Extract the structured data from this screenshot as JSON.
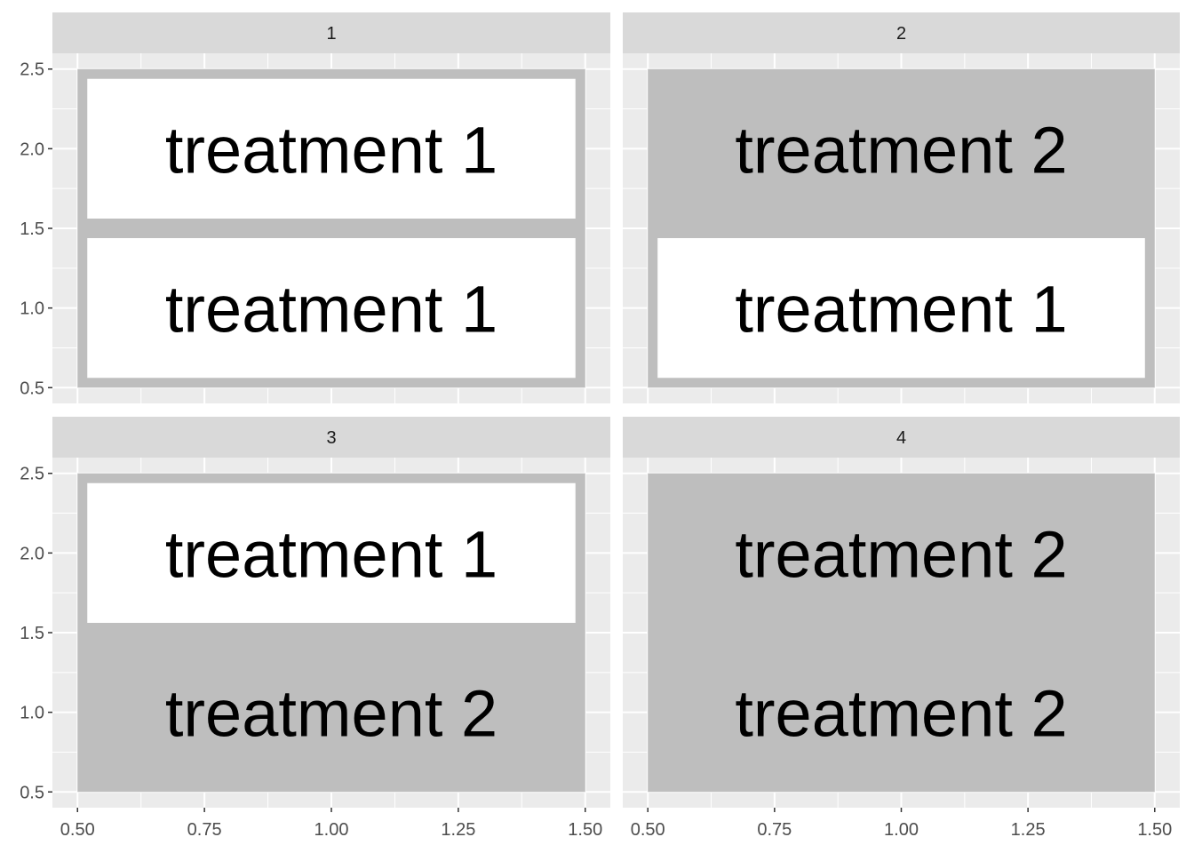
{
  "chart_data": {
    "type": "heatmap",
    "facet_layout": "2x2",
    "grid": true,
    "legend": "none",
    "xlim": [
      0.5,
      1.5
    ],
    "ylim": [
      0.5,
      2.5
    ],
    "x_ticks": [
      0.5,
      0.75,
      1.0,
      1.25,
      1.5
    ],
    "x_tick_labels": [
      "0.50",
      "0.75",
      "1.00",
      "1.25",
      "1.50"
    ],
    "y_ticks": [
      0.5,
      1.0,
      1.5,
      2.0,
      2.5
    ],
    "y_tick_labels": [
      "0.5",
      "1.0",
      "1.5",
      "2.0",
      "2.5"
    ],
    "colors": {
      "panel_bg": "#ebebeb",
      "grid_major": "#ffffff",
      "strip_bg": "#d9d9d9",
      "treatment 1": "#ffffff",
      "treatment 2": "#bebebe",
      "tile_border": "#bebebe"
    },
    "facets": [
      {
        "strip": "1",
        "tiles": [
          {
            "x": 1,
            "y": 1,
            "label": "treatment 1"
          },
          {
            "x": 1,
            "y": 2,
            "label": "treatment 1"
          }
        ]
      },
      {
        "strip": "2",
        "tiles": [
          {
            "x": 1,
            "y": 1,
            "label": "treatment 1"
          },
          {
            "x": 1,
            "y": 2,
            "label": "treatment 2"
          }
        ]
      },
      {
        "strip": "3",
        "tiles": [
          {
            "x": 1,
            "y": 1,
            "label": "treatment 2"
          },
          {
            "x": 1,
            "y": 2,
            "label": "treatment 1"
          }
        ]
      },
      {
        "strip": "4",
        "tiles": [
          {
            "x": 1,
            "y": 1,
            "label": "treatment 2"
          },
          {
            "x": 1,
            "y": 2,
            "label": "treatment 2"
          }
        ]
      }
    ]
  }
}
